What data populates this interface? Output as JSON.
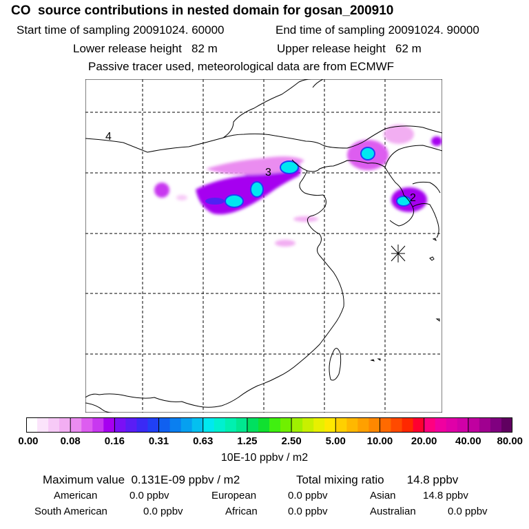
{
  "header": {
    "title": "CO  source contributions in nested domain for gosan_200910",
    "start_time": "Start time of sampling 20091024. 60000",
    "end_time": "End time of sampling 20091024. 90000",
    "lower_height": "Lower release height   82 m",
    "upper_height": "Upper release height   62 m",
    "tracer_note": "Passive tracer used, meteorological data are from ECMWF"
  },
  "map": {
    "contour_labels": [
      "4",
      "3",
      "2"
    ],
    "site_marker": "gosan receptor"
  },
  "colorbar": {
    "ticks": [
      "0.00",
      "0.08",
      "0.16",
      "0.31",
      "0.63",
      "1.25",
      "2.50",
      "5.00",
      "10.00",
      "20.00",
      "40.00",
      "80.00"
    ],
    "colors": [
      "#ffffff",
      "#fbe4fb",
      "#f7caf7",
      "#f2aef2",
      "#ea8cf0",
      "#dd5df0",
      "#c838f0",
      "#a600f0",
      "#7a10f5",
      "#5a1df5",
      "#3a2af5",
      "#2040f5",
      "#1060f0",
      "#0a7ff0",
      "#06a0f0",
      "#04c0f0",
      "#00e8f0",
      "#00f0d0",
      "#00f0b0",
      "#00e890",
      "#00e060",
      "#10e030",
      "#40f010",
      "#70f000",
      "#a0f000",
      "#c8f000",
      "#e8f000",
      "#ffe800",
      "#ffd000",
      "#ffb800",
      "#ffa000",
      "#ff8800",
      "#ff6a00",
      "#ff4a00",
      "#ff2800",
      "#ff0030",
      "#ff0080",
      "#f000a0",
      "#e000a8",
      "#d000a8",
      "#c000a0",
      "#a00090",
      "#800080",
      "#600060"
    ],
    "units": "10E-10 ppbv / m2"
  },
  "stats": {
    "maximum": "Maximum value  0.131E-09 ppbv / m2",
    "total": "Total mixing ratio       14.8 ppbv",
    "american_label": "American",
    "american_value": "0.0 ppbv",
    "european_label": "European",
    "european_value": "0.0 ppbv",
    "asian_label": "Asian",
    "asian_value": "14.8 ppbv",
    "south_american_label": "South American",
    "south_american_value": "0.0 ppbv",
    "african_label": "African",
    "african_value": "0.0 ppbv",
    "australian_label": "Australian",
    "australian_value": "0.0 ppbv"
  }
}
